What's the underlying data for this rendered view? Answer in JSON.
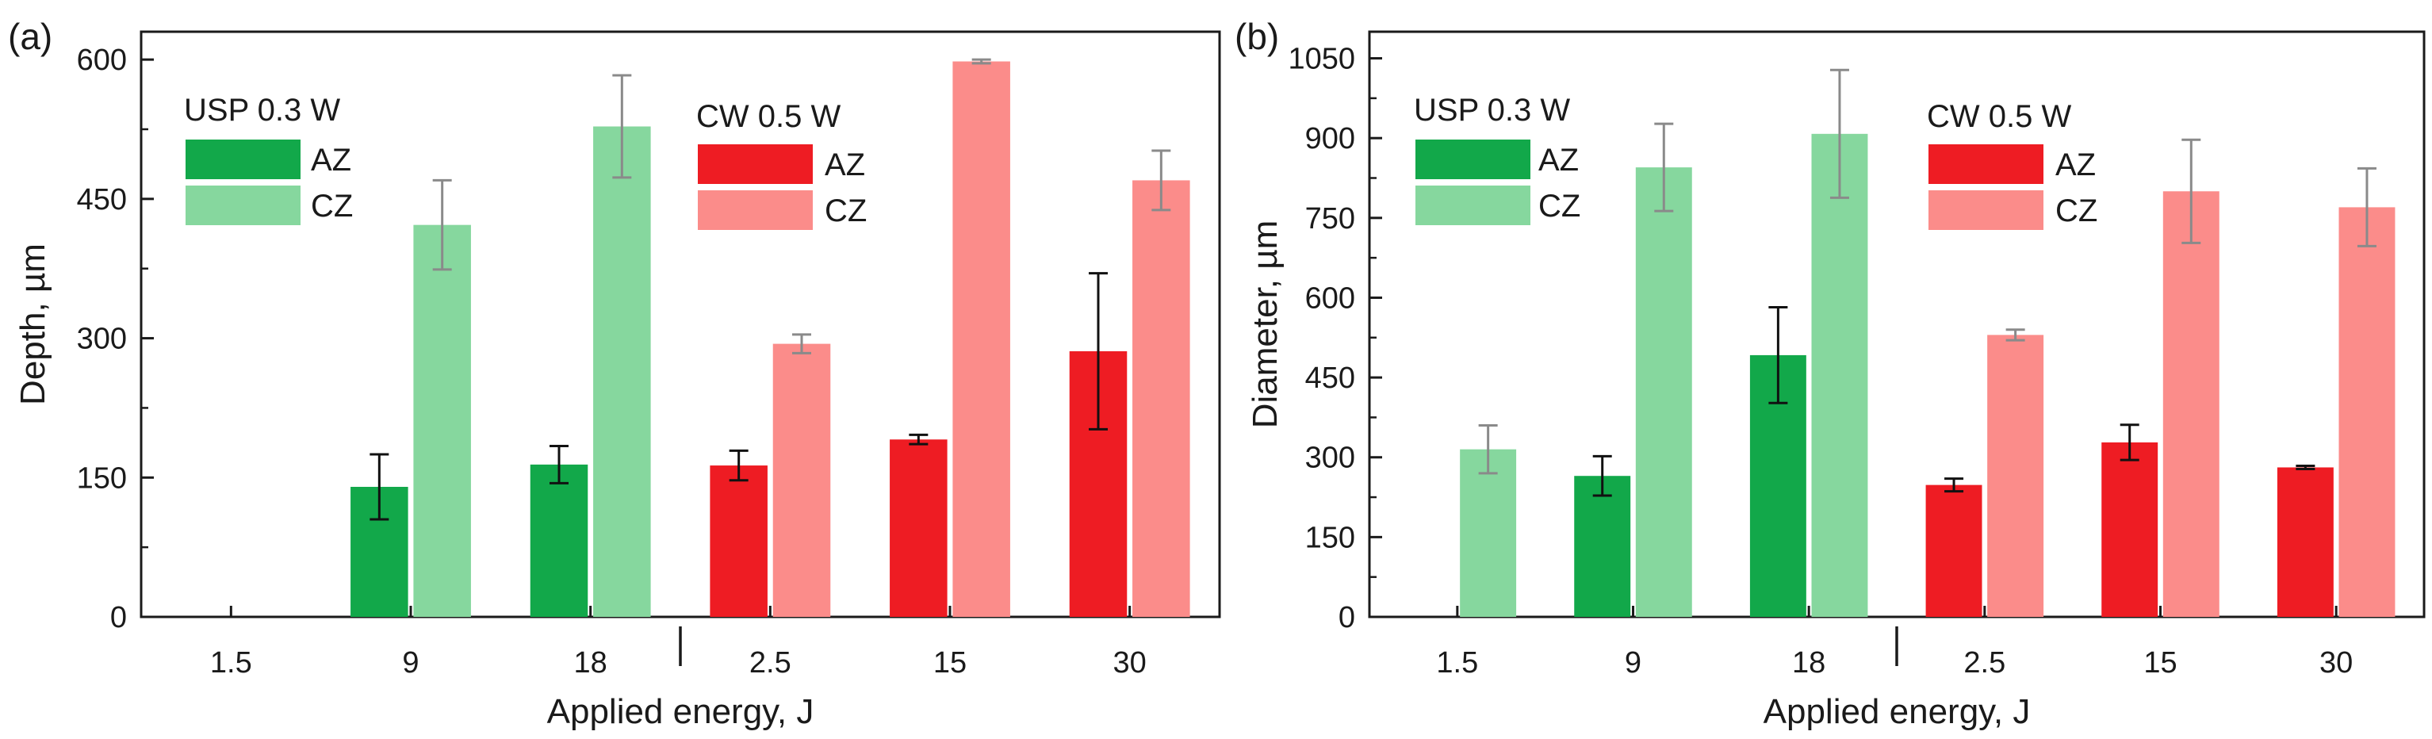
{
  "figure": {
    "colors": {
      "usp_az": "#12a84a",
      "usp_cz": "#86d79e",
      "cw_az": "#ee1c23",
      "cw_cz": "#fb8c8a",
      "err_dark": "#111111",
      "err_gray": "#8a8a8a",
      "axis": "#1a1a1a"
    }
  },
  "chart_data": [
    {
      "panel_label": "(a)",
      "type": "bar",
      "title": "",
      "xlabel": "Applied energy, J",
      "ylabel": "Depth, µm",
      "ylim": [
        0,
        630
      ],
      "yticks": [
        0,
        150,
        300,
        450,
        600
      ],
      "ytick_labels": [
        "0",
        "150",
        "300",
        "450",
        "600"
      ],
      "categories": [
        "1.5",
        "9",
        "18",
        "2.5",
        "15",
        "30"
      ],
      "group_separator_after": "18",
      "legend": [
        {
          "title": "USP 0.3 W",
          "entries": [
            {
              "label": "AZ",
              "color_key": "usp_az"
            },
            {
              "label": "CZ",
              "color_key": "usp_cz"
            }
          ]
        },
        {
          "title": "CW 0.5 W",
          "entries": [
            {
              "label": "AZ",
              "color_key": "cw_az"
            },
            {
              "label": "CZ",
              "color_key": "cw_cz"
            }
          ]
        }
      ],
      "bars": [
        {
          "category": "1.5",
          "series": "AZ",
          "group": "USP",
          "value": null,
          "err": null
        },
        {
          "category": "1.5",
          "series": "CZ",
          "group": "USP",
          "value": null,
          "err": null
        },
        {
          "category": "9",
          "series": "AZ",
          "group": "USP",
          "value": 140,
          "err": 35
        },
        {
          "category": "9",
          "series": "CZ",
          "group": "USP",
          "value": 422,
          "err": 48
        },
        {
          "category": "18",
          "series": "AZ",
          "group": "USP",
          "value": 164,
          "err": 20
        },
        {
          "category": "18",
          "series": "CZ",
          "group": "USP",
          "value": 528,
          "err": 55
        },
        {
          "category": "2.5",
          "series": "AZ",
          "group": "CW",
          "value": 163,
          "err": 16
        },
        {
          "category": "2.5",
          "series": "CZ",
          "group": "CW",
          "value": 294,
          "err": 10
        },
        {
          "category": "15",
          "series": "AZ",
          "group": "CW",
          "value": 191,
          "err": 5
        },
        {
          "category": "15",
          "series": "CZ",
          "group": "CW",
          "value": 598,
          "err": 2
        },
        {
          "category": "30",
          "series": "AZ",
          "group": "CW",
          "value": 286,
          "err": 84
        },
        {
          "category": "30",
          "series": "CZ",
          "group": "CW",
          "value": 470,
          "err": 32
        }
      ]
    },
    {
      "panel_label": "(b)",
      "type": "bar",
      "title": "",
      "xlabel": "Applied energy, J",
      "ylabel": "Diameter, µm",
      "ylim": [
        0,
        1100
      ],
      "yticks": [
        0,
        150,
        300,
        450,
        600,
        750,
        900,
        1050
      ],
      "ytick_labels": [
        "0",
        "150",
        "300",
        "450",
        "600",
        "750",
        "900",
        "1050"
      ],
      "categories": [
        "1.5",
        "9",
        "18",
        "2.5",
        "15",
        "30"
      ],
      "group_separator_after": "18",
      "legend": [
        {
          "title": "USP 0.3 W",
          "entries": [
            {
              "label": "AZ",
              "color_key": "usp_az"
            },
            {
              "label": "CZ",
              "color_key": "usp_cz"
            }
          ]
        },
        {
          "title": "CW 0.5 W",
          "entries": [
            {
              "label": "AZ",
              "color_key": "cw_az"
            },
            {
              "label": "CZ",
              "color_key": "cw_cz"
            }
          ]
        }
      ],
      "bars": [
        {
          "category": "1.5",
          "series": "AZ",
          "group": "USP",
          "value": null,
          "err": null
        },
        {
          "category": "1.5",
          "series": "CZ",
          "group": "USP",
          "value": 315,
          "err": 45
        },
        {
          "category": "9",
          "series": "AZ",
          "group": "USP",
          "value": 265,
          "err": 37
        },
        {
          "category": "9",
          "series": "CZ",
          "group": "USP",
          "value": 845,
          "err": 82
        },
        {
          "category": "18",
          "series": "AZ",
          "group": "USP",
          "value": 492,
          "err": 90
        },
        {
          "category": "18",
          "series": "CZ",
          "group": "USP",
          "value": 908,
          "err": 120
        },
        {
          "category": "2.5",
          "series": "AZ",
          "group": "CW",
          "value": 248,
          "err": 12
        },
        {
          "category": "2.5",
          "series": "CZ",
          "group": "CW",
          "value": 530,
          "err": 10
        },
        {
          "category": "15",
          "series": "AZ",
          "group": "CW",
          "value": 328,
          "err": 33
        },
        {
          "category": "15",
          "series": "CZ",
          "group": "CW",
          "value": 800,
          "err": 97
        },
        {
          "category": "30",
          "series": "AZ",
          "group": "CW",
          "value": 281,
          "err": 3
        },
        {
          "category": "30",
          "series": "CZ",
          "group": "CW",
          "value": 770,
          "err": 73
        }
      ]
    }
  ]
}
